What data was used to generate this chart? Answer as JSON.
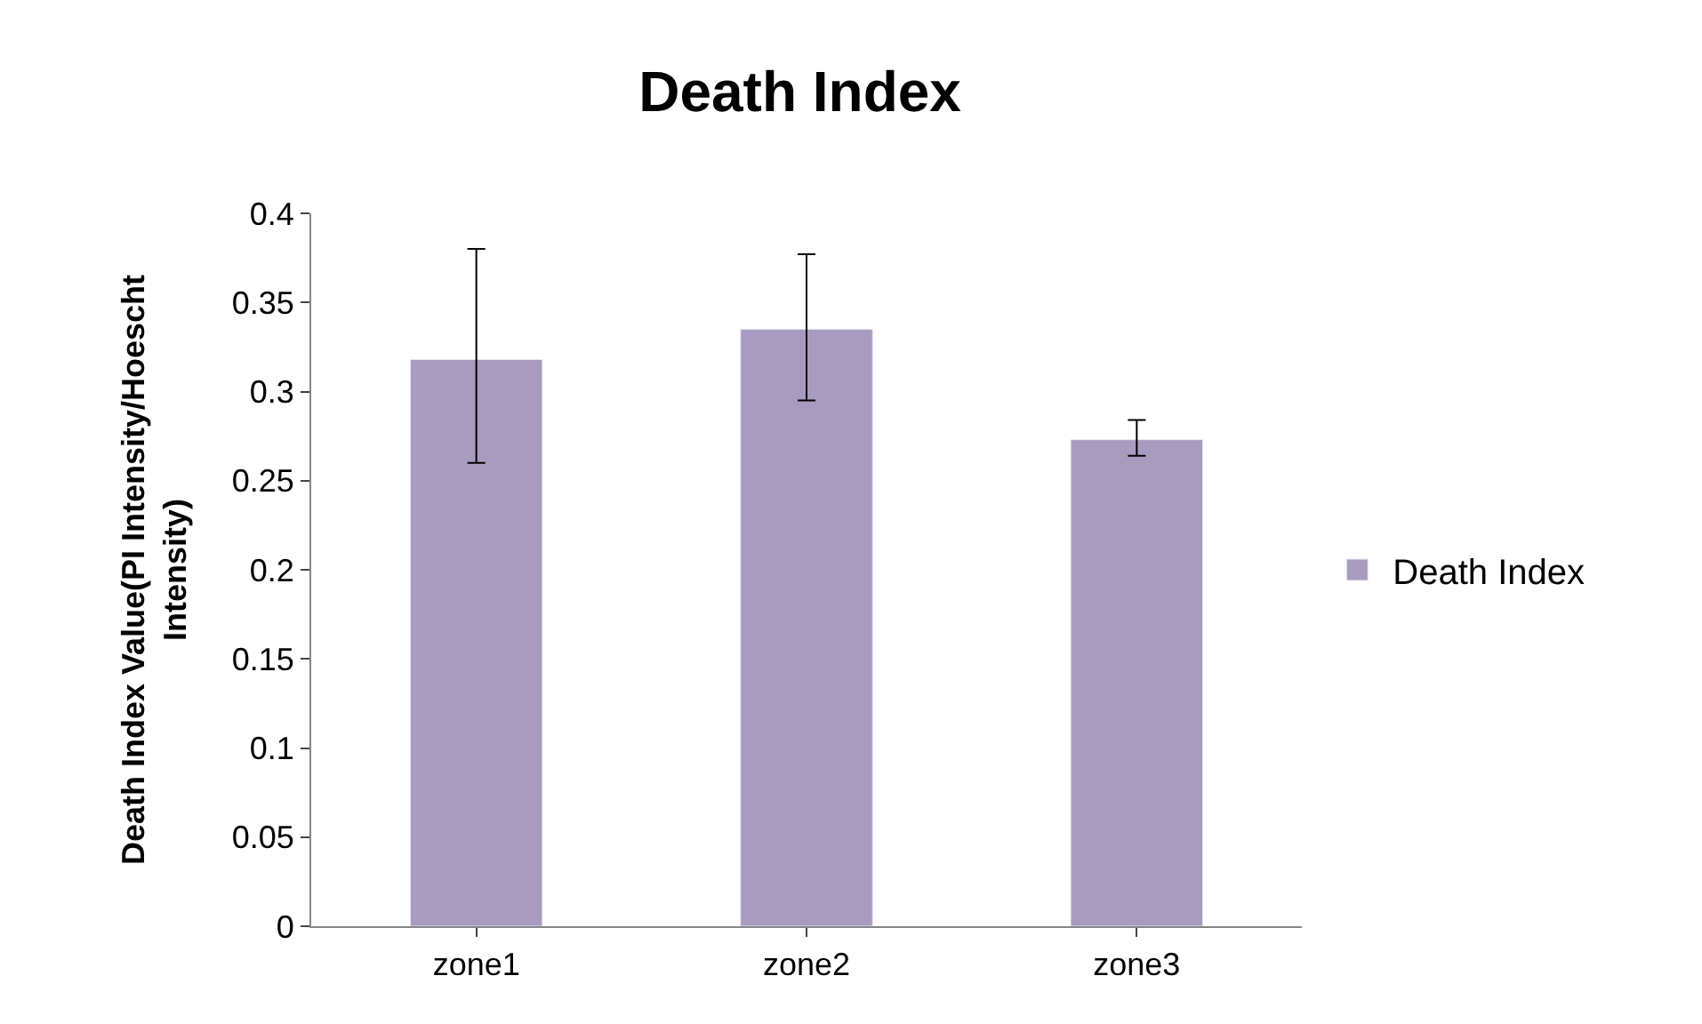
{
  "chart_data": {
    "type": "bar",
    "title": "Death Index",
    "ylabel": "Death Index Value(PI Intensity/Hoescht Intensity)",
    "categories": [
      "zone1",
      "zone2",
      "zone3"
    ],
    "series": [
      {
        "name": "Death Index",
        "color": "#a99bc0",
        "values": [
          0.318,
          0.335,
          0.273
        ],
        "errors": [
          [
            0.26,
            0.38
          ],
          [
            0.295,
            0.377
          ],
          [
            0.264,
            0.284
          ]
        ]
      }
    ],
    "ylim": [
      0,
      0.4
    ],
    "yticks": [
      0,
      0.05,
      0.1,
      0.15,
      0.2,
      0.25,
      0.3,
      0.35,
      0.4
    ],
    "legend": "right"
  }
}
